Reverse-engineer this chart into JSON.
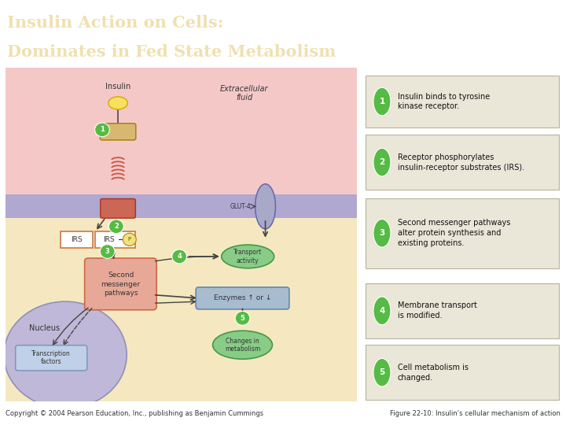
{
  "title_line1": "Insulin Action on Cells:",
  "title_line2": "Dominates in Fed State Metabolism",
  "title_bg": "#2e6b65",
  "title_color": "#f0e0b0",
  "fig_bg": "#ffffff",
  "copyright": "Copyright © 2004 Pearson Education, Inc., publishing as Benjamin Cummings",
  "figure_label": "Figure 22-10: Insulin’s cellular mechanism of action",
  "extracellular_bg": "#f5c8c8",
  "membrane_color": "#b0a8d0",
  "cytoplasm_bg": "#f5e8c0",
  "nucleus_color": "#c0b8d8",
  "panel_bg": "#eae6d8",
  "panel_border": "#b8b4a0",
  "green_circle": "#55bb44",
  "insulin_color": "#f8e060",
  "receptor_top_color": "#d8b870",
  "receptor_bot_color": "#cc6655",
  "glut4_color": "#a8a8c8",
  "irs_border": "#cc7744",
  "second_msg_color": "#e8a898",
  "second_msg_border": "#cc6644",
  "enzyme_box_color": "#a8bcd0",
  "enzyme_box_border": "#6688aa",
  "transport_color": "#88cc88",
  "transport_border": "#449944",
  "changes_color": "#88cc88",
  "tf_box_color": "#c0d0e8",
  "tf_box_border": "#7799bb",
  "step1_text": "Insulin binds to tyrosine\nkinase receptor.",
  "step2_text": "Receptor phosphorylates\ninsulin-receptor substrates (IRS).",
  "step3_text": "Second messenger pathways\nalter protein synthesis and\nexisting proteins.",
  "step4_text": "Membrane transport\nis modified.",
  "step5_text": "Cell metabolism is\nchanged."
}
